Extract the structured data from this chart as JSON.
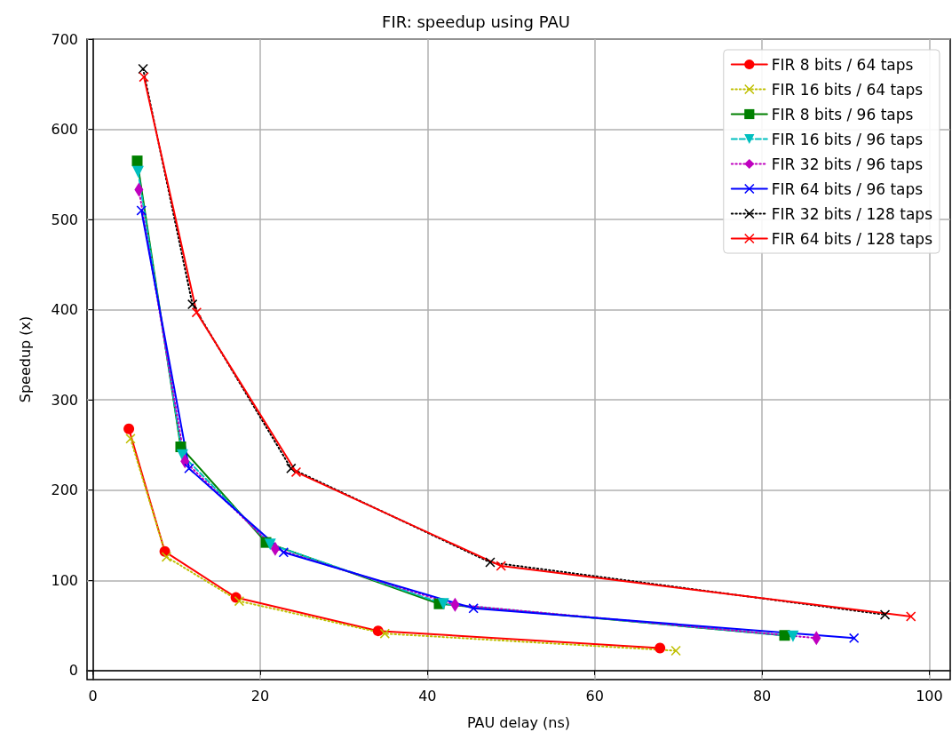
{
  "chart_data": {
    "type": "line",
    "title": "FIR: speedup using PAU",
    "xlabel": "PAU delay (ns)",
    "ylabel": "Speedup (x)",
    "xlim": [
      -0.7,
      102.5
    ],
    "xticks": [
      0,
      20,
      40,
      60,
      80,
      100
    ],
    "ylim": [
      -10,
      700
    ],
    "yticks": [
      0,
      100,
      200,
      300,
      400,
      500,
      600,
      700
    ],
    "grid": true,
    "legend": "top right",
    "series": [
      {
        "name": "FIR 8 bits / 64 taps",
        "color": "#ff0000",
        "marker": "circle",
        "line_style": "solid",
        "x": [
          4.3,
          8.6,
          17.1,
          34.1,
          67.8
        ],
        "values": [
          268,
          132,
          81,
          44,
          25
        ]
      },
      {
        "name": "FIR 16 bits / 64 taps",
        "color": "#bfbf00",
        "marker": "cross",
        "line_style": "dotted",
        "x": [
          4.5,
          8.8,
          17.5,
          34.9,
          69.7
        ],
        "values": [
          257,
          126,
          77,
          41,
          22
        ]
      },
      {
        "name": "FIR 8 bits / 96 taps",
        "color": "#008000",
        "marker": "square",
        "line_style": "solid",
        "x": [
          5.3,
          10.5,
          20.7,
          41.4,
          82.7
        ],
        "values": [
          565,
          248,
          142,
          74,
          39
        ]
      },
      {
        "name": "FIR 16 bits / 96 taps",
        "color": "#00bfbf",
        "marker": "triangle_down",
        "line_style": "dashed",
        "x": [
          5.4,
          10.7,
          21.2,
          41.9,
          83.7
        ],
        "values": [
          553,
          239,
          140,
          74,
          38
        ]
      },
      {
        "name": "FIR 32 bits / 96 taps",
        "color": "#bf00bf",
        "marker": "diamond",
        "line_style": "dotted",
        "x": [
          5.5,
          11.0,
          21.8,
          43.3,
          86.5
        ],
        "values": [
          533,
          232,
          135,
          73,
          36
        ]
      },
      {
        "name": "FIR 64 bits / 96 taps",
        "color": "#0000ff",
        "marker": "cross",
        "line_style": "solid",
        "x": [
          5.8,
          11.5,
          22.8,
          45.5,
          91.0
        ],
        "values": [
          510,
          224,
          131,
          69,
          36
        ]
      },
      {
        "name": "FIR 32 bits / 128 taps",
        "color": "#000000",
        "marker": "cross",
        "line_style": "dotted",
        "x": [
          6.0,
          11.9,
          23.7,
          47.5,
          94.7
        ],
        "values": [
          667,
          406,
          224,
          120,
          62
        ]
      },
      {
        "name": "FIR 64 bits / 128 taps",
        "color": "#ff0000",
        "marker": "cross",
        "line_style": "solid",
        "x": [
          6.1,
          12.4,
          24.3,
          48.8,
          97.8
        ],
        "values": [
          658,
          397,
          220,
          116,
          60
        ]
      }
    ]
  }
}
